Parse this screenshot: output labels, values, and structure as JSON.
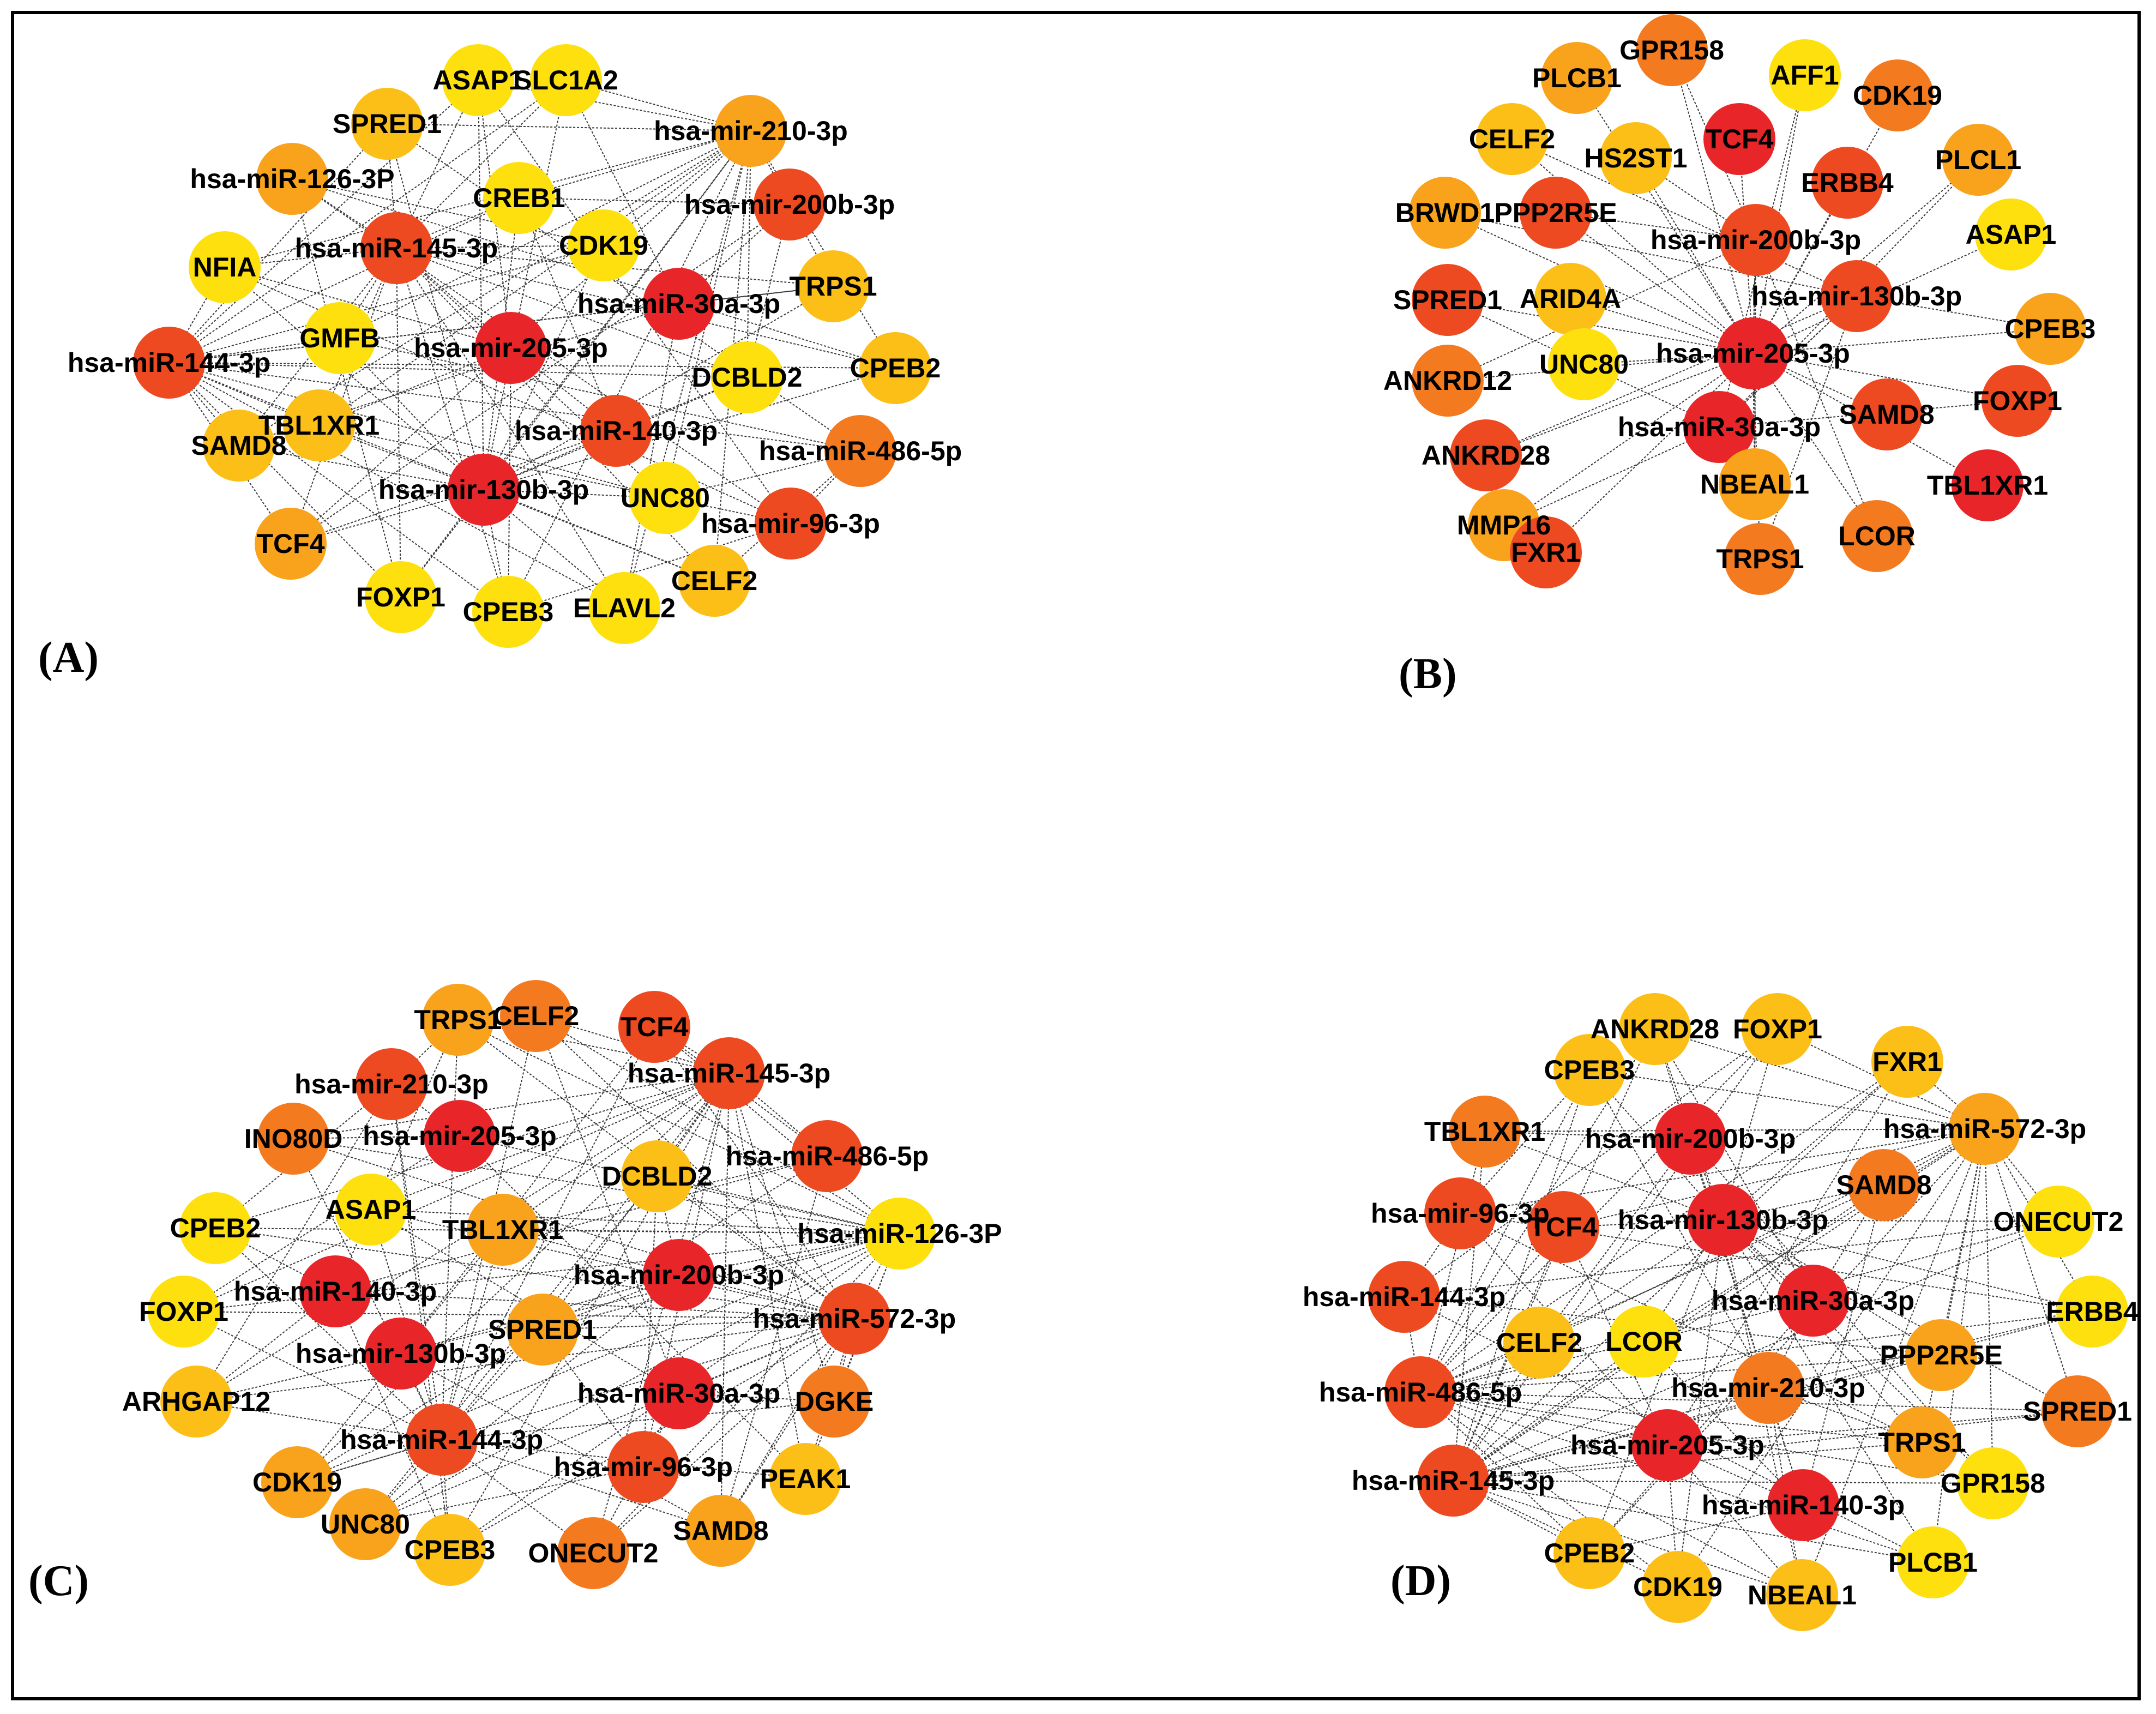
{
  "colors": {
    "red": "#e8262a",
    "red_orange": "#ee4a22",
    "orange": "#f47a20",
    "light_orange": "#f9a21c",
    "amber": "#fcbf18",
    "yellow": "#fde00e"
  },
  "panels": [
    {
      "id": "A",
      "label": "(A)",
      "nodes": [
        {
          "name": "ASAP1",
          "color": "yellow"
        },
        {
          "name": "SLC1A2",
          "color": "yellow"
        },
        {
          "name": "SPRED1",
          "color": "amber"
        },
        {
          "name": "hsa-mir-210-3p",
          "color": "light_orange"
        },
        {
          "name": "hsa-miR-126-3P",
          "color": "light_orange"
        },
        {
          "name": "CREB1",
          "color": "yellow"
        },
        {
          "name": "hsa-mir-200b-3p",
          "color": "red_orange"
        },
        {
          "name": "hsa-miR-145-3p",
          "color": "red_orange"
        },
        {
          "name": "CDK19",
          "color": "yellow"
        },
        {
          "name": "NFIA",
          "color": "yellow"
        },
        {
          "name": "TRPS1",
          "color": "amber"
        },
        {
          "name": "hsa-miR-30a-3p",
          "color": "red"
        },
        {
          "name": "GMFB",
          "color": "yellow"
        },
        {
          "name": "hsa-mir-205-3p",
          "color": "red"
        },
        {
          "name": "hsa-miR-144-3p",
          "color": "red_orange"
        },
        {
          "name": "DCBLD2",
          "color": "yellow"
        },
        {
          "name": "CPEB2",
          "color": "amber"
        },
        {
          "name": "TBL1XR1",
          "color": "amber"
        },
        {
          "name": "hsa-miR-140-3p",
          "color": "red_orange"
        },
        {
          "name": "SAMD8",
          "color": "amber"
        },
        {
          "name": "hsa-miR-486-5p",
          "color": "orange"
        },
        {
          "name": "hsa-mir-130b-3p",
          "color": "red"
        },
        {
          "name": "UNC80",
          "color": "yellow"
        },
        {
          "name": "hsa-mir-96-3p",
          "color": "red_orange"
        },
        {
          "name": "TCF4",
          "color": "light_orange"
        },
        {
          "name": "FOXP1",
          "color": "yellow"
        },
        {
          "name": "CPEB3",
          "color": "yellow"
        },
        {
          "name": "ELAVL2",
          "color": "yellow"
        },
        {
          "name": "CELF2",
          "color": "amber"
        }
      ]
    },
    {
      "id": "B",
      "label": "(B)",
      "nodes": [
        {
          "name": "GPR158",
          "color": "orange"
        },
        {
          "name": "PLCB1",
          "color": "light_orange"
        },
        {
          "name": "AFF1",
          "color": "yellow"
        },
        {
          "name": "CDK19",
          "color": "orange"
        },
        {
          "name": "CELF2",
          "color": "amber"
        },
        {
          "name": "HS2ST1",
          "color": "amber"
        },
        {
          "name": "TCF4",
          "color": "red"
        },
        {
          "name": "PLCL1",
          "color": "light_orange"
        },
        {
          "name": "ERBB4",
          "color": "red_orange"
        },
        {
          "name": "BRWD1",
          "color": "light_orange"
        },
        {
          "name": "PPP2R5E",
          "color": "red_orange"
        },
        {
          "name": "hsa-mir-200b-3p",
          "color": "red_orange"
        },
        {
          "name": "ASAP1",
          "color": "yellow"
        },
        {
          "name": "SPRED1",
          "color": "red_orange"
        },
        {
          "name": "ARID4A",
          "color": "amber"
        },
        {
          "name": "hsa-mir-130b-3p",
          "color": "red_orange"
        },
        {
          "name": "CPEB3",
          "color": "light_orange"
        },
        {
          "name": "ANKRD12",
          "color": "orange"
        },
        {
          "name": "UNC80",
          "color": "yellow"
        },
        {
          "name": "hsa-mir-205-3p",
          "color": "red"
        },
        {
          "name": "FOXP1",
          "color": "red_orange"
        },
        {
          "name": "SAMD8",
          "color": "red_orange"
        },
        {
          "name": "ANKRD28",
          "color": "red_orange"
        },
        {
          "name": "hsa-miR-30a-3p",
          "color": "red"
        },
        {
          "name": "NBEAL1",
          "color": "light_orange"
        },
        {
          "name": "TBL1XR1",
          "color": "red"
        },
        {
          "name": "MMP16",
          "color": "light_orange"
        },
        {
          "name": "FXR1",
          "color": "red_orange"
        },
        {
          "name": "TRPS1",
          "color": "orange"
        },
        {
          "name": "LCOR",
          "color": "orange"
        }
      ]
    },
    {
      "id": "C",
      "label": "(C)",
      "nodes": [
        {
          "name": "TRPS1",
          "color": "light_orange"
        },
        {
          "name": "CELF2",
          "color": "orange"
        },
        {
          "name": "TCF4",
          "color": "red_orange"
        },
        {
          "name": "hsa-mir-210-3p",
          "color": "red_orange"
        },
        {
          "name": "hsa-miR-145-3p",
          "color": "red_orange"
        },
        {
          "name": "INO80D",
          "color": "orange"
        },
        {
          "name": "hsa-mir-205-3p",
          "color": "red"
        },
        {
          "name": "hsa-miR-486-5p",
          "color": "red_orange"
        },
        {
          "name": "DCBLD2",
          "color": "amber"
        },
        {
          "name": "CPEB2",
          "color": "yellow"
        },
        {
          "name": "ASAP1",
          "color": "yellow"
        },
        {
          "name": "TBL1XR1",
          "color": "light_orange"
        },
        {
          "name": "hsa-miR-126-3P",
          "color": "yellow"
        },
        {
          "name": "hsa-miR-140-3p",
          "color": "red"
        },
        {
          "name": "hsa-mir-200b-3p",
          "color": "red"
        },
        {
          "name": "FOXP1",
          "color": "yellow"
        },
        {
          "name": "hsa-miR-572-3p",
          "color": "red_orange"
        },
        {
          "name": "SPRED1",
          "color": "light_orange"
        },
        {
          "name": "hsa-mir-130b-3p",
          "color": "red"
        },
        {
          "name": "ARHGAP12",
          "color": "amber"
        },
        {
          "name": "hsa-miR-30a-3p",
          "color": "red"
        },
        {
          "name": "DGKE",
          "color": "orange"
        },
        {
          "name": "hsa-miR-144-3p",
          "color": "red_orange"
        },
        {
          "name": "hsa-mir-96-3p",
          "color": "red_orange"
        },
        {
          "name": "CDK19",
          "color": "light_orange"
        },
        {
          "name": "PEAK1",
          "color": "amber"
        },
        {
          "name": "UNC80",
          "color": "light_orange"
        },
        {
          "name": "CPEB3",
          "color": "amber"
        },
        {
          "name": "ONECUT2",
          "color": "orange"
        },
        {
          "name": "SAMD8",
          "color": "light_orange"
        }
      ]
    },
    {
      "id": "D",
      "label": "(D)",
      "nodes": [
        {
          "name": "ANKRD28",
          "color": "amber"
        },
        {
          "name": "FOXP1",
          "color": "amber"
        },
        {
          "name": "FXR1",
          "color": "amber"
        },
        {
          "name": "CPEB3",
          "color": "amber"
        },
        {
          "name": "hsa-miR-572-3p",
          "color": "light_orange"
        },
        {
          "name": "TBL1XR1",
          "color": "orange"
        },
        {
          "name": "hsa-mir-200b-3p",
          "color": "red"
        },
        {
          "name": "SAMD8",
          "color": "orange"
        },
        {
          "name": "ONECUT2",
          "color": "yellow"
        },
        {
          "name": "hsa-mir-96-3p",
          "color": "red_orange"
        },
        {
          "name": "hsa-mir-130b-3p",
          "color": "red"
        },
        {
          "name": "TCF4",
          "color": "red_orange"
        },
        {
          "name": "hsa-miR-144-3p",
          "color": "red_orange"
        },
        {
          "name": "hsa-miR-30a-3p",
          "color": "red"
        },
        {
          "name": "ERBB4",
          "color": "yellow"
        },
        {
          "name": "CELF2",
          "color": "amber"
        },
        {
          "name": "LCOR",
          "color": "yellow"
        },
        {
          "name": "PPP2R5E",
          "color": "light_orange"
        },
        {
          "name": "hsa-miR-486-5p",
          "color": "red_orange"
        },
        {
          "name": "hsa-mir-210-3p",
          "color": "orange"
        },
        {
          "name": "SPRED1",
          "color": "orange"
        },
        {
          "name": "hsa-mir-205-3p",
          "color": "red"
        },
        {
          "name": "TRPS1",
          "color": "light_orange"
        },
        {
          "name": "hsa-miR-145-3p",
          "color": "red_orange"
        },
        {
          "name": "GPR158",
          "color": "yellow"
        },
        {
          "name": "hsa-miR-140-3p",
          "color": "red"
        },
        {
          "name": "CPEB2",
          "color": "amber"
        },
        {
          "name": "PLCB1",
          "color": "yellow"
        },
        {
          "name": "CDK19",
          "color": "amber"
        },
        {
          "name": "NBEAL1",
          "color": "amber"
        }
      ]
    }
  ]
}
